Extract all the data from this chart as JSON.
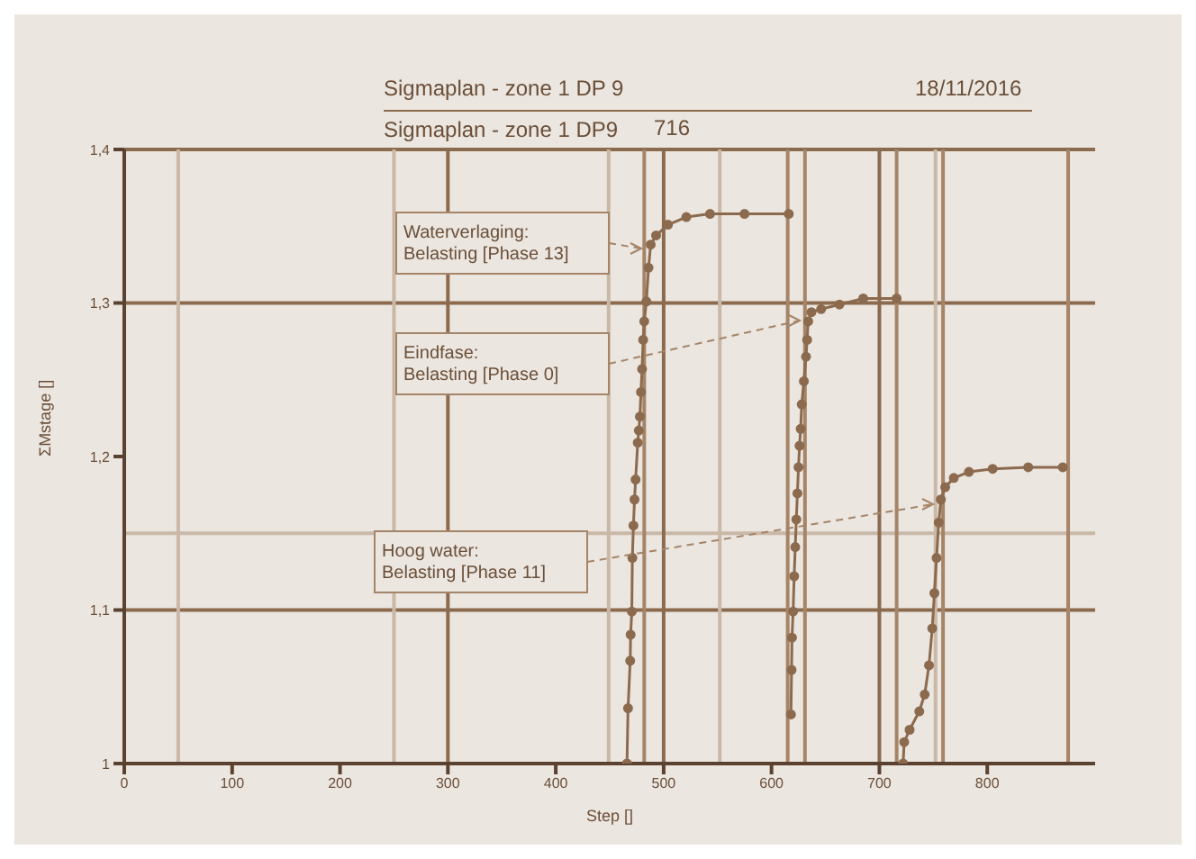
{
  "chart_data": {
    "type": "line",
    "title": "Sigmaplan - zone 1 DP 9",
    "subtitle": "Sigmaplan - zone 1 DP9",
    "xlabel": "Step []",
    "ylabel": "ΣMstage []",
    "xlim": [
      0,
      900
    ],
    "xticks": [
      0,
      100,
      200,
      300,
      400,
      500,
      600,
      700,
      800
    ],
    "ylim": [
      1,
      1.4
    ],
    "yticks": [
      {
        "value": 1,
        "label": "1"
      },
      {
        "value": 1.1,
        "label": "1,1"
      },
      {
        "value": 1.2,
        "label": "1,2"
      },
      {
        "value": 1.3,
        "label": "1,3"
      },
      {
        "value": 1.4,
        "label": "1,4"
      }
    ],
    "grid": false,
    "marker": "circle",
    "line_style": "solid",
    "series": [
      {
        "color": "#8c6a4e",
        "x": [
          466,
          467,
          469,
          469.4,
          470.5,
          471,
          472,
          473,
          474,
          476,
          477,
          478,
          479,
          480,
          481,
          482,
          484,
          486,
          488,
          493,
          504,
          521,
          543,
          575,
          616
        ],
        "values": [
          1.0,
          1.036,
          1.067,
          1.084,
          1.099,
          1.134,
          1.155,
          1.172,
          1.185,
          1.209,
          1.217,
          1.226,
          1.242,
          1.257,
          1.276,
          1.288,
          1.301,
          1.323,
          1.338,
          1.344,
          1.351,
          1.356,
          1.358,
          1.358,
          1.358
        ]
      },
      {
        "color": "#8c6a4e",
        "x": [
          618,
          618.6,
          619,
          620,
          621,
          622,
          623,
          624,
          625,
          626,
          627,
          628,
          630,
          632,
          633,
          634,
          637,
          646,
          663,
          685,
          716
        ],
        "values": [
          1.032,
          1.061,
          1.082,
          1.099,
          1.122,
          1.141,
          1.159,
          1.176,
          1.193,
          1.207,
          1.218,
          1.234,
          1.249,
          1.265,
          1.276,
          1.288,
          1.294,
          1.296,
          1.299,
          1.303,
          1.303
        ]
      },
      {
        "color": "#8c6a4e",
        "x": [
          722,
          723,
          728,
          737,
          742,
          746,
          749,
          751,
          753,
          755,
          757,
          761,
          769,
          783,
          805,
          838,
          870
        ],
        "values": [
          1.0,
          1.014,
          1.022,
          1.034,
          1.045,
          1.064,
          1.088,
          1.111,
          1.134,
          1.157,
          1.172,
          1.18,
          1.186,
          1.19,
          1.192,
          1.193,
          1.193
        ]
      }
    ],
    "ref_lines": [
      {
        "axis": "y",
        "value": 1.3,
        "color": "#8c6a4e"
      },
      {
        "axis": "y",
        "value": 1.1,
        "color": "#8c6a4e"
      },
      {
        "axis": "y",
        "value": 1.15,
        "color": "#c9b8a6"
      },
      {
        "axis": "x",
        "value": 50,
        "color": "#c9b8a6"
      },
      {
        "axis": "x",
        "value": 250,
        "color": "#c9b8a6"
      },
      {
        "axis": "x",
        "value": 300,
        "color": "#8c6a4e"
      },
      {
        "axis": "x",
        "value": 449,
        "color": "#c9b8a6"
      },
      {
        "axis": "x",
        "value": 482,
        "color": "#a58467"
      },
      {
        "axis": "x",
        "value": 500,
        "color": "#8c6a4e"
      },
      {
        "axis": "x",
        "value": 552,
        "color": "#c9b8a6"
      },
      {
        "axis": "x",
        "value": 615,
        "color": "#a58467"
      },
      {
        "axis": "x",
        "value": 631,
        "color": "#a58467"
      },
      {
        "axis": "x",
        "value": 700,
        "color": "#8c6a4e"
      },
      {
        "axis": "x",
        "value": 716,
        "color": "#a58467"
      },
      {
        "axis": "x",
        "value": 752,
        "color": "#c9b8a6"
      },
      {
        "axis": "x",
        "value": 759,
        "color": "#a58467"
      },
      {
        "axis": "x",
        "value": 875,
        "color": "#a58467"
      }
    ],
    "annotations": [
      "18/11/2016",
      "716",
      "Waterverlaging:\nBelasting [Phase 13]",
      "Eindfase:\nBelasting [Phase 0]",
      "Hoog water:\nBelasting [Phase 11]"
    ]
  }
}
